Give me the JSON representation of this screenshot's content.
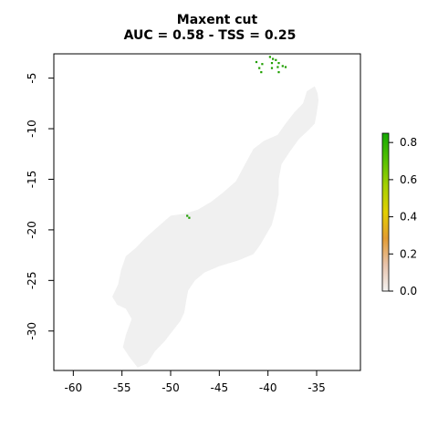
{
  "title_line1": "Maxent cut",
  "title_line2": "AUC = 0.58 - TSS = 0.25",
  "colors": {
    "background_region": "#f0f0f0",
    "presence": "#1f9e00",
    "axis": "#000000",
    "legend_gradient": [
      "#f2f2f2",
      "#e8c3ab",
      "#e39c32",
      "#e2cf00",
      "#a5d000",
      "#53c000",
      "#14a800"
    ]
  },
  "chart_data": {
    "type": "heatmap",
    "title": "Maxent cut\nAUC = 0.58 - TSS = 0.25",
    "xlim": [
      -62,
      -30.5
    ],
    "ylim": [
      -33.9,
      -2.6
    ],
    "x_ticks": [
      -60,
      -55,
      -50,
      -45,
      -40,
      -35
    ],
    "x_tick_labels": [
      "-60",
      "-55",
      "-50",
      "-45",
      "-40",
      "-35"
    ],
    "y_ticks": [
      -5,
      -10,
      -15,
      -20,
      -25,
      -30
    ],
    "y_tick_labels": [
      "-5",
      "-10",
      "-15",
      "-20",
      "-25",
      "-30"
    ],
    "legend": {
      "range": [
        0,
        0.85
      ],
      "ticks": [
        0.0,
        0.2,
        0.4,
        0.6,
        0.8
      ],
      "tick_labels": [
        "0.0",
        "0.2",
        "0.4",
        "0.6",
        "0.8"
      ],
      "placement": "right"
    },
    "region_outline_lonlat": [
      [
        -53.4,
        -33.6
      ],
      [
        -52.4,
        -33.2
      ],
      [
        -51.6,
        -32.0
      ],
      [
        -50.6,
        -31.0
      ],
      [
        -49.8,
        -30.0
      ],
      [
        -49.0,
        -29.0
      ],
      [
        -48.6,
        -28.2
      ],
      [
        -48.4,
        -27.0
      ],
      [
        -48.2,
        -26.0
      ],
      [
        -47.5,
        -25.0
      ],
      [
        -46.5,
        -24.2
      ],
      [
        -45.0,
        -23.6
      ],
      [
        -43.0,
        -23.0
      ],
      [
        -41.5,
        -22.4
      ],
      [
        -40.8,
        -21.5
      ],
      [
        -40.2,
        -20.5
      ],
      [
        -39.6,
        -19.5
      ],
      [
        -39.2,
        -18.0
      ],
      [
        -38.9,
        -16.5
      ],
      [
        -38.9,
        -15.0
      ],
      [
        -38.6,
        -13.5
      ],
      [
        -37.7,
        -12.2
      ],
      [
        -36.8,
        -11.0
      ],
      [
        -35.9,
        -10.2
      ],
      [
        -35.2,
        -9.5
      ],
      [
        -35.0,
        -8.5
      ],
      [
        -34.8,
        -7.2
      ],
      [
        -34.9,
        -6.5
      ],
      [
        -35.2,
        -5.8
      ],
      [
        -36.0,
        -6.3
      ],
      [
        -36.4,
        -7.5
      ],
      [
        -37.3,
        -8.4
      ],
      [
        -38.2,
        -9.5
      ],
      [
        -39.0,
        -10.6
      ],
      [
        -40.4,
        -11.2
      ],
      [
        -41.5,
        -12.0
      ],
      [
        -42.4,
        -13.6
      ],
      [
        -43.3,
        -15.2
      ],
      [
        -44.6,
        -16.3
      ],
      [
        -45.8,
        -17.2
      ],
      [
        -47.2,
        -18.0
      ],
      [
        -48.6,
        -18.4
      ],
      [
        -50.0,
        -18.6
      ],
      [
        -51.2,
        -19.6
      ],
      [
        -52.6,
        -20.8
      ],
      [
        -53.6,
        -21.8
      ],
      [
        -54.6,
        -22.6
      ],
      [
        -55.1,
        -24.0
      ],
      [
        -55.4,
        -25.4
      ],
      [
        -56.0,
        -26.6
      ],
      [
        -55.5,
        -27.4
      ],
      [
        -54.6,
        -27.8
      ],
      [
        -54.0,
        -28.8
      ],
      [
        -54.6,
        -30.4
      ],
      [
        -54.9,
        -31.6
      ],
      [
        -54.2,
        -32.6
      ]
    ],
    "presence_cells_lonlat": [
      [
        -39.8,
        -2.9
      ],
      [
        -39.5,
        -3.1
      ],
      [
        -39.2,
        -3.2
      ],
      [
        -38.9,
        -3.5
      ],
      [
        -38.5,
        -3.8
      ],
      [
        -38.2,
        -3.9
      ],
      [
        -39.6,
        -3.5
      ],
      [
        -39.0,
        -3.9
      ],
      [
        -40.6,
        -3.6
      ],
      [
        -41.2,
        -3.4
      ],
      [
        -40.9,
        -4.0
      ],
      [
        -40.7,
        -4.4
      ],
      [
        -38.9,
        -4.4
      ],
      [
        -39.6,
        -4.0
      ],
      [
        -48.3,
        -18.6
      ],
      [
        -48.1,
        -18.8
      ]
    ]
  }
}
